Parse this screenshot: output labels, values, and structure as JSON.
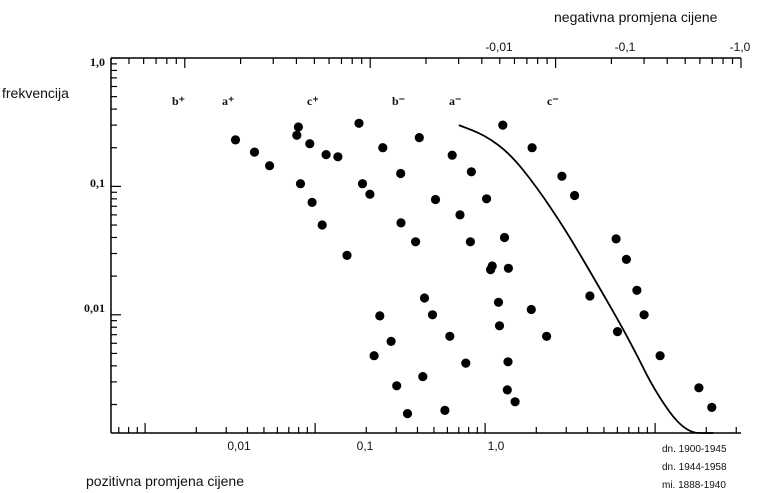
{
  "chart_data": {
    "type": "scatter",
    "title": "",
    "x_axis_bottom": {
      "label": "pozitivna promjena cijene",
      "scale": "log",
      "range": [
        0.00063,
        3.2
      ],
      "ticks": [
        "0,01",
        "0,1",
        "1,0"
      ]
    },
    "x_axis_top": {
      "label": "negativna promjena cijene",
      "scale": "log",
      "range": [
        0.0004,
        1.0
      ],
      "ticks": [
        "-0,01",
        "-0,1",
        "-1,0"
      ]
    },
    "y_axis": {
      "label": "frekvencija",
      "scale": "log",
      "range": [
        0.0012,
        1.0
      ],
      "ticks": [
        "1,0",
        "0,1",
        "0,01"
      ]
    },
    "grid": false,
    "series": [
      {
        "name": "b⁺",
        "axis": "bottom",
        "points": [
          [
            0.0034,
            0.23
          ],
          [
            0.0044,
            0.185
          ],
          [
            0.0054,
            0.145
          ],
          [
            0.0082,
            0.105
          ],
          [
            0.0096,
            0.075
          ],
          [
            0.011,
            0.05
          ],
          [
            0.0154,
            0.029
          ],
          [
            0.024,
            0.0098
          ],
          [
            0.028,
            0.0062
          ],
          [
            0.043,
            0.0033
          ],
          [
            0.058,
            0.0018
          ]
        ]
      },
      {
        "name": "a⁺",
        "axis": "bottom",
        "points": [
          [
            0.0078,
            0.25
          ],
          [
            0.0093,
            0.215
          ],
          [
            0.0116,
            0.177
          ],
          [
            0.019,
            0.105
          ],
          [
            0.021,
            0.087
          ],
          [
            0.032,
            0.052
          ],
          [
            0.039,
            0.037
          ],
          [
            0.044,
            0.0135
          ],
          [
            0.049,
            0.01
          ],
          [
            0.062,
            0.0068
          ],
          [
            0.077,
            0.0042
          ]
        ]
      },
      {
        "name": "c⁺",
        "axis": "bottom",
        "points": [
          [
            0.041,
            0.24
          ],
          [
            0.064,
            0.175
          ],
          [
            0.083,
            0.13
          ],
          [
            0.102,
            0.08
          ],
          [
            0.13,
            0.04
          ],
          [
            0.137,
            0.023
          ],
          [
            0.187,
            0.011
          ],
          [
            0.23,
            0.0068
          ],
          [
            0.135,
            0.0026
          ],
          [
            0.15,
            0.0021
          ]
        ]
      },
      {
        "name": "b⁻",
        "axis": "top",
        "points": [
          [
            0.0041,
            0.29
          ],
          [
            0.0067,
            0.17
          ],
          [
            0.0105,
            0.0048
          ],
          [
            0.0139,
            0.0028
          ],
          [
            0.0159,
            0.0017
          ]
        ]
      },
      {
        "name": "a⁻",
        "axis": "top",
        "points": [
          [
            0.0087,
            0.31
          ],
          [
            0.0117,
            0.2
          ],
          [
            0.0146,
            0.126
          ],
          [
            0.0225,
            0.079
          ],
          [
            0.0305,
            0.06
          ],
          [
            0.0347,
            0.037
          ],
          [
            0.0446,
            0.0225
          ],
          [
            0.0455,
            0.024
          ],
          [
            0.0492,
            0.0125
          ],
          [
            0.0498,
            0.0082
          ],
          [
            0.0554,
            0.0043
          ]
        ]
      },
      {
        "name": "c⁻",
        "axis": "top",
        "points": [
          [
            0.0519,
            0.3
          ],
          [
            0.0747,
            0.2
          ],
          [
            0.1082,
            0.12
          ],
          [
            0.1267,
            0.085
          ],
          [
            0.212,
            0.039
          ],
          [
            0.241,
            0.027
          ],
          [
            0.1532,
            0.014
          ],
          [
            0.2745,
            0.0155
          ],
          [
            0.3,
            0.01
          ],
          [
            0.2158,
            0.0074
          ],
          [
            0.3662,
            0.0048
          ],
          [
            0.5926,
            0.0027
          ],
          [
            0.6958,
            0.0019
          ]
        ]
      }
    ],
    "curve": {
      "axis": "bottom",
      "points": [
        [
          0.07,
          0.3
        ],
        [
          0.1,
          0.25
        ],
        [
          0.14,
          0.18
        ],
        [
          0.2,
          0.1
        ],
        [
          0.3,
          0.045
        ],
        [
          0.45,
          0.018
        ],
        [
          0.7,
          0.0065
        ],
        [
          1.0,
          0.0025
        ],
        [
          1.5,
          0.0011
        ],
        [
          2.2,
          0.0004
        ]
      ]
    },
    "legend": {
      "placement": "bottom-right",
      "entries": [
        "dn. 1900-1945",
        "dn. 1944-1958",
        "mi. 1888-1940"
      ]
    }
  }
}
